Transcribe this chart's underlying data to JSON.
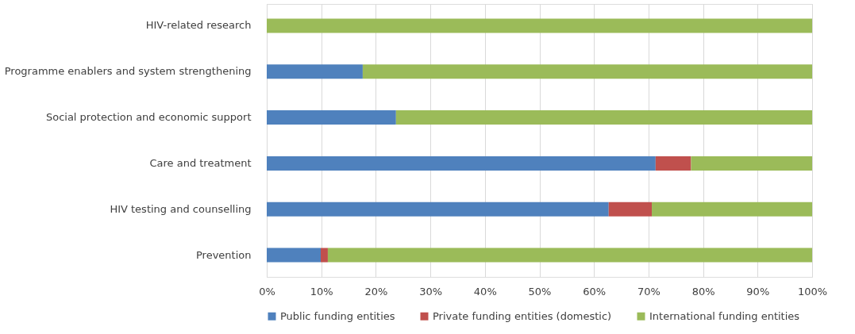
{
  "chart_data": {
    "type": "bar",
    "orientation": "horizontal",
    "stacked": true,
    "categories": [
      "HIV-related research",
      "Programme enablers and system strengthening",
      "Social protection and economic support",
      "Care and treatment",
      "HIV testing and counselling",
      "Prevention"
    ],
    "series": [
      {
        "name": "Public funding entities",
        "color": "#4f81bd",
        "values": [
          0,
          17.6,
          23.7,
          71.3,
          62.7,
          9.9
        ]
      },
      {
        "name": "Private funding entities (domestic)",
        "color": "#c0504d",
        "values": [
          0,
          0,
          0,
          6.5,
          7.9,
          1.3
        ]
      },
      {
        "name": "International funding entities",
        "color": "#9bbb59",
        "values": [
          100,
          82.4,
          76.3,
          22.2,
          29.4,
          88.8
        ]
      }
    ],
    "xlim": [
      0,
      100
    ],
    "xticks": [
      {
        "value": 0,
        "label": "0%"
      },
      {
        "value": 10,
        "label": "10%"
      },
      {
        "value": 20,
        "label": "20%"
      },
      {
        "value": 30,
        "label": "30%"
      },
      {
        "value": 40,
        "label": "40%"
      },
      {
        "value": 50,
        "label": "50%"
      },
      {
        "value": 60,
        "label": "60%"
      },
      {
        "value": 70,
        "label": "70%"
      },
      {
        "value": 80,
        "label": "80%"
      },
      {
        "value": 90,
        "label": "90%"
      },
      {
        "value": 100,
        "label": "100%"
      }
    ],
    "grid": "x",
    "legend": "bottom"
  }
}
